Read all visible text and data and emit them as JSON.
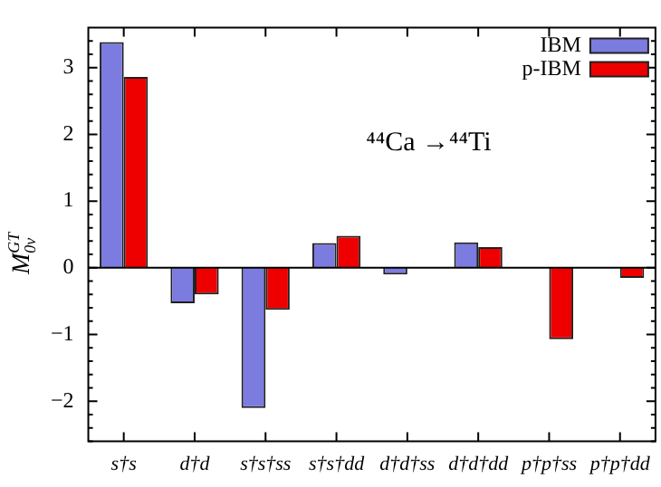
{
  "chart_data": {
    "type": "bar",
    "ylabel": "M$^{GT}$$_{0ν}$",
    "categories": [
      "s†s",
      "d†d",
      "s†s†ss",
      "s†s†dd",
      "d†d†ss",
      "d†d†dd",
      "p†p†ss",
      "p†p†dd"
    ],
    "series": [
      {
        "name": "IBM",
        "color": "#7b7be0",
        "values": [
          3.38,
          -0.53,
          -2.1,
          0.37,
          -0.1,
          0.38,
          null,
          null
        ]
      },
      {
        "name": "p-IBM",
        "color": "#ee0000",
        "values": [
          2.86,
          -0.4,
          -0.63,
          0.48,
          null,
          0.31,
          -1.07,
          -0.15
        ]
      }
    ],
    "ylim": [
      -2.6,
      3.6
    ],
    "yticks": [
      {
        "value": -2,
        "label": "−2"
      },
      {
        "value": -1,
        "label": "−1"
      },
      0,
      1,
      2,
      3
    ],
    "annotations": [
      {
        "text": "⁴⁴Ca →⁴⁴Ti"
      }
    ],
    "ref_lines": [
      {
        "axis": "y",
        "value": 0,
        "color": "#000000"
      }
    ],
    "legend": "top right",
    "grid": false
  }
}
